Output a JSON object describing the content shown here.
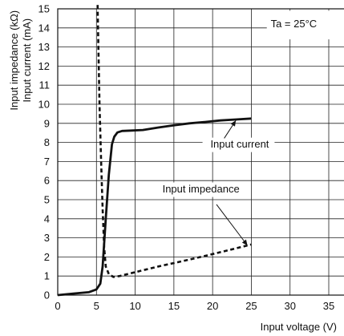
{
  "chart_data": {
    "type": "line",
    "title": "",
    "xlabel": "Input voltage (V)",
    "ylabel": [
      "Input impedance (kΩ)",
      "Input current (mA)"
    ],
    "xlim": [
      0,
      35
    ],
    "ylim": [
      0,
      15
    ],
    "xticks": [
      "0",
      "5",
      "10",
      "15",
      "20",
      "25",
      "30",
      "35"
    ],
    "yticks": [
      "0",
      "1",
      "2",
      "3",
      "4",
      "5",
      "6",
      "7",
      "8",
      "9",
      "10",
      "11",
      "12",
      "13",
      "14",
      "15"
    ],
    "grid": true,
    "condition_label": "Ta = 25°C",
    "series": [
      {
        "name": "Input current",
        "style": "solid",
        "color": "#111111",
        "x": [
          0,
          2,
          4,
          5,
          5.5,
          5.8,
          6.2,
          6.6,
          7,
          7.3,
          7.7,
          8.3,
          9.5,
          11,
          13,
          15,
          17,
          19,
          21,
          23,
          25
        ],
        "y": [
          0,
          0.08,
          0.15,
          0.3,
          0.6,
          1.5,
          4.0,
          6.3,
          7.9,
          8.3,
          8.52,
          8.6,
          8.62,
          8.65,
          8.78,
          8.9,
          9.0,
          9.07,
          9.15,
          9.2,
          9.25
        ]
      },
      {
        "name": "Input impedance",
        "style": "dashed",
        "color": "#111111",
        "x": [
          5.15,
          5.25,
          5.4,
          5.6,
          5.8,
          6.0,
          6.2,
          6.6,
          7.2,
          8,
          10,
          13,
          16,
          19,
          22,
          25
        ],
        "y": [
          15.2,
          13,
          10,
          7,
          4.5,
          2.5,
          1.5,
          1.1,
          0.95,
          1.0,
          1.2,
          1.5,
          1.77,
          2.05,
          2.35,
          2.65
        ]
      }
    ],
    "annotations": [
      {
        "text": "Input current",
        "series": "Input current",
        "arrow_to": [
          23,
          9.15
        ]
      },
      {
        "text": "Input impedance",
        "series": "Input impedance",
        "arrow_to": [
          24.5,
          2.6
        ]
      }
    ]
  }
}
